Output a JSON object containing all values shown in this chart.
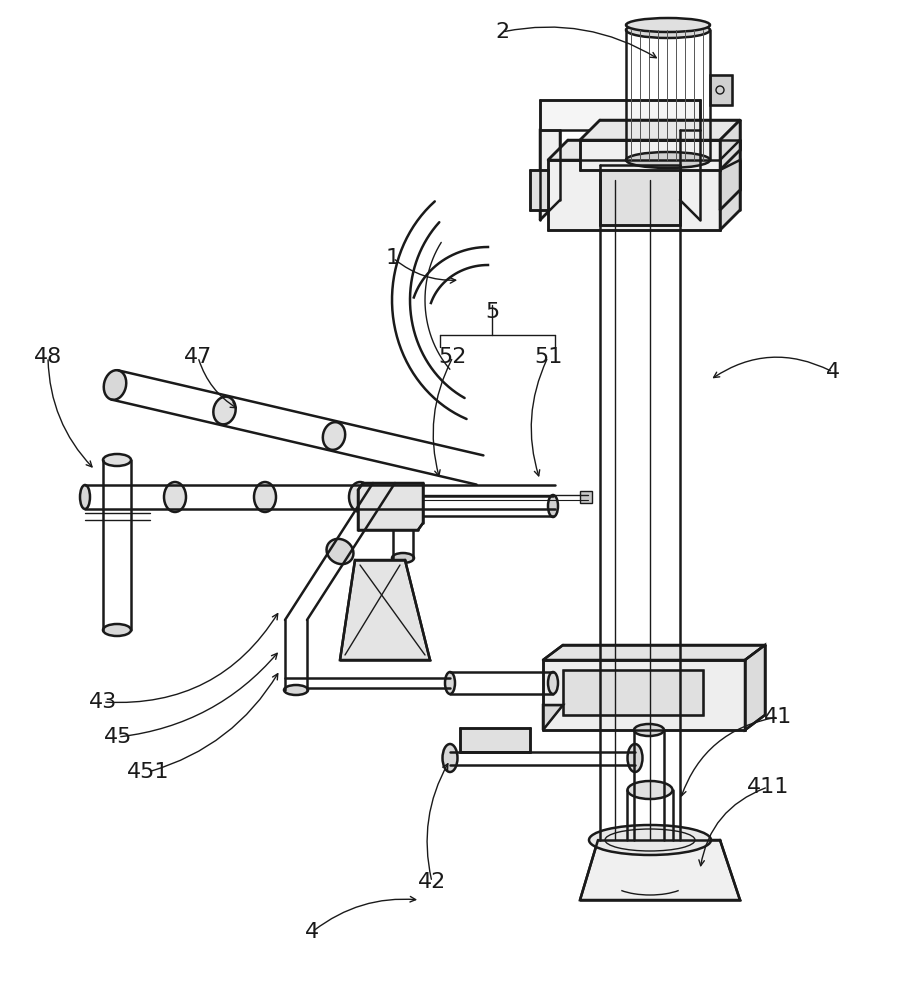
{
  "bg_color": "#ffffff",
  "line_color": "#1a1a1a",
  "lw_main": 1.8,
  "lw_thin": 1.0,
  "lw_thick": 2.2,
  "labels": [
    [
      "1",
      393,
      742
    ],
    [
      "2",
      502,
      968
    ],
    [
      "4",
      833,
      628
    ],
    [
      "4",
      312,
      68
    ],
    [
      "5",
      492,
      688
    ],
    [
      "41",
      778,
      283
    ],
    [
      "42",
      432,
      118
    ],
    [
      "43",
      103,
      298
    ],
    [
      "45",
      118,
      263
    ],
    [
      "47",
      198,
      643
    ],
    [
      "48",
      48,
      643
    ],
    [
      "51",
      548,
      643
    ],
    [
      "52",
      453,
      643
    ],
    [
      "411",
      768,
      213
    ],
    [
      "451",
      148,
      228
    ]
  ]
}
